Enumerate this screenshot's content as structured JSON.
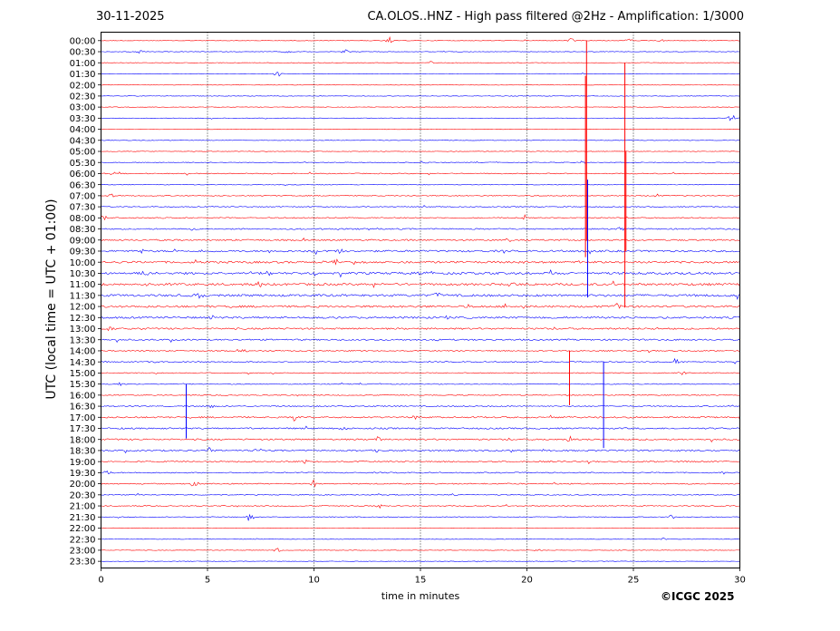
{
  "header": {
    "date": "30-11-2025",
    "title": "CA.OLOS..HNZ - High pass filtered @2Hz - Amplification: 1/3000"
  },
  "footer": {
    "copyright": "©ICGC 2025"
  },
  "chart_data": {
    "type": "line",
    "title": "CA.OLOS..HNZ - High pass filtered @2Hz - Amplification: 1/3000",
    "subtitle": "30-11-2025",
    "xlabel": "time in minutes",
    "ylabel": "UTC (local time = UTC + 01:00)",
    "xlim": [
      0,
      30
    ],
    "x_ticks": [
      0,
      5,
      10,
      15,
      20,
      25,
      30
    ],
    "grid": "vertical dotted lines at x = 5, 10, 15, 20, 25",
    "row_labels": [
      "00:00",
      "00:30",
      "01:00",
      "01:30",
      "02:00",
      "02:30",
      "03:00",
      "03:30",
      "04:00",
      "04:30",
      "05:00",
      "05:30",
      "06:00",
      "06:30",
      "07:00",
      "07:30",
      "08:00",
      "08:30",
      "09:00",
      "09:30",
      "10:00",
      "10:30",
      "11:00",
      "11:30",
      "12:00",
      "12:30",
      "13:00",
      "13:30",
      "14:00",
      "14:30",
      "15:00",
      "15:30",
      "16:00",
      "16:30",
      "17:00",
      "17:30",
      "18:00",
      "18:30",
      "19:00",
      "19:30",
      "20:00",
      "20:30",
      "21:00",
      "21:30",
      "22:00",
      "22:30",
      "23:00",
      "23:30"
    ],
    "colors": {
      "even_rows": "#ff0000",
      "odd_rows": "#0000ff"
    },
    "noise_level": [
      0.3,
      0.3,
      0.3,
      0.3,
      0.3,
      0.3,
      0.3,
      0.3,
      0.3,
      0.3,
      0.3,
      0.4,
      0.5,
      0.4,
      0.5,
      0.5,
      0.6,
      0.7,
      0.8,
      1.0,
      1.1,
      1.2,
      1.2,
      1.2,
      1.1,
      1.0,
      0.9,
      0.8,
      0.6,
      0.6,
      0.5,
      0.5,
      0.5,
      0.6,
      0.8,
      0.8,
      0.8,
      0.8,
      0.7,
      0.6,
      0.6,
      0.5,
      0.5,
      0.4,
      0.3,
      0.3,
      0.3,
      0.3
    ],
    "bursts": [
      {
        "row": 0,
        "x": 13.5,
        "amp": 5
      },
      {
        "row": 0,
        "x": 22.1,
        "amp": 3
      },
      {
        "row": 0,
        "x": 24.8,
        "amp": 3
      },
      {
        "row": 0,
        "x": 26.3,
        "amp": 2
      },
      {
        "row": 1,
        "x": 1.8,
        "amp": 2
      },
      {
        "row": 1,
        "x": 8.7,
        "amp": 3
      },
      {
        "row": 1,
        "x": 11.5,
        "amp": 4
      },
      {
        "row": 2,
        "x": 15.5,
        "amp": 2
      },
      {
        "row": 3,
        "x": 8.3,
        "amp": 3
      },
      {
        "row": 7,
        "x": 29.6,
        "amp": 5
      },
      {
        "row": 11,
        "x": 15.2,
        "amp": 4
      },
      {
        "row": 11,
        "x": 22.6,
        "amp": 3
      },
      {
        "row": 12,
        "x": 0.6,
        "amp": 2
      },
      {
        "row": 12,
        "x": 4.0,
        "amp": 2
      },
      {
        "row": 14,
        "x": 0.5,
        "amp": 3
      },
      {
        "row": 14,
        "x": 26.1,
        "amp": 3
      },
      {
        "row": 16,
        "x": 0.1,
        "amp": 3
      },
      {
        "row": 16,
        "x": 19.9,
        "amp": 4
      },
      {
        "row": 17,
        "x": 4.4,
        "amp": 3
      },
      {
        "row": 17,
        "x": 24.4,
        "amp": 3
      },
      {
        "row": 19,
        "x": 2.0,
        "amp": 3
      },
      {
        "row": 19,
        "x": 10.1,
        "amp": 4
      },
      {
        "row": 19,
        "x": 11.2,
        "amp": 4
      },
      {
        "row": 20,
        "x": 10.4,
        "amp": 4
      },
      {
        "row": 20,
        "x": 11.0,
        "amp": 3
      },
      {
        "row": 21,
        "x": 2.1,
        "amp": 4
      },
      {
        "row": 21,
        "x": 7.9,
        "amp": 4
      },
      {
        "row": 21,
        "x": 10.0,
        "amp": 3
      },
      {
        "row": 21,
        "x": 15.1,
        "amp": 3
      },
      {
        "row": 22,
        "x": 7.5,
        "amp": 3
      },
      {
        "row": 22,
        "x": 19.3,
        "amp": 3
      },
      {
        "row": 23,
        "x": 4.6,
        "amp": 4
      },
      {
        "row": 23,
        "x": 15.8,
        "amp": 5
      },
      {
        "row": 24,
        "x": 24.2,
        "amp": 3
      },
      {
        "row": 25,
        "x": 5.2,
        "amp": 3
      },
      {
        "row": 25,
        "x": 16.3,
        "amp": 3
      },
      {
        "row": 26,
        "x": 0.4,
        "amp": 3
      },
      {
        "row": 26,
        "x": 26.1,
        "amp": 3
      },
      {
        "row": 28,
        "x": 6.7,
        "amp": 2
      },
      {
        "row": 29,
        "x": 2.4,
        "amp": 3
      },
      {
        "row": 29,
        "x": 4.9,
        "amp": 3
      },
      {
        "row": 29,
        "x": 27.0,
        "amp": 4
      },
      {
        "row": 30,
        "x": 27.3,
        "amp": 3
      },
      {
        "row": 31,
        "x": 0.8,
        "amp": 3
      },
      {
        "row": 33,
        "x": 5.2,
        "amp": 3
      },
      {
        "row": 33,
        "x": 29.5,
        "amp": 3
      },
      {
        "row": 34,
        "x": 9.1,
        "amp": 6
      },
      {
        "row": 34,
        "x": 14.8,
        "amp": 3
      },
      {
        "row": 35,
        "x": 6.7,
        "amp": 3
      },
      {
        "row": 35,
        "x": 11.4,
        "amp": 3
      },
      {
        "row": 36,
        "x": 13.0,
        "amp": 4
      },
      {
        "row": 36,
        "x": 22.0,
        "amp": 4
      },
      {
        "row": 37,
        "x": 5.1,
        "amp": 4
      },
      {
        "row": 37,
        "x": 7.4,
        "amp": 3
      },
      {
        "row": 37,
        "x": 12.9,
        "amp": 3
      },
      {
        "row": 38,
        "x": 9.6,
        "amp": 3
      },
      {
        "row": 39,
        "x": 0.3,
        "amp": 3
      },
      {
        "row": 39,
        "x": 29.3,
        "amp": 3
      },
      {
        "row": 40,
        "x": 10.0,
        "amp": 4
      },
      {
        "row": 40,
        "x": 4.4,
        "amp": 3
      },
      {
        "row": 41,
        "x": 16.6,
        "amp": 2
      },
      {
        "row": 42,
        "x": 13.1,
        "amp": 3
      },
      {
        "row": 43,
        "x": 7.0,
        "amp": 6
      },
      {
        "row": 43,
        "x": 26.8,
        "amp": 3
      },
      {
        "row": 45,
        "x": 26.5,
        "amp": 2
      },
      {
        "row": 46,
        "x": 8.3,
        "amp": 3
      },
      {
        "row": 46,
        "x": 20.5,
        "amp": 2
      }
    ],
    "spikes": [
      {
        "row": 0,
        "x": 22.8,
        "up": 0,
        "down": 220
      },
      {
        "row": 4,
        "x": 22.75,
        "up": 10,
        "down": 190
      },
      {
        "row": 2,
        "x": 24.6,
        "up": 0,
        "down": 270
      },
      {
        "row": 15,
        "x": 22.85,
        "up": 30,
        "down": 100
      },
      {
        "row": 10,
        "x": 24.65,
        "up": 0,
        "down": 110
      },
      {
        "row": 31,
        "x": 4.0,
        "up": 0,
        "down": 60
      },
      {
        "row": 28,
        "x": 22.0,
        "up": 0,
        "down": 60
      },
      {
        "row": 29,
        "x": 23.6,
        "up": 0,
        "down": 95
      }
    ]
  }
}
